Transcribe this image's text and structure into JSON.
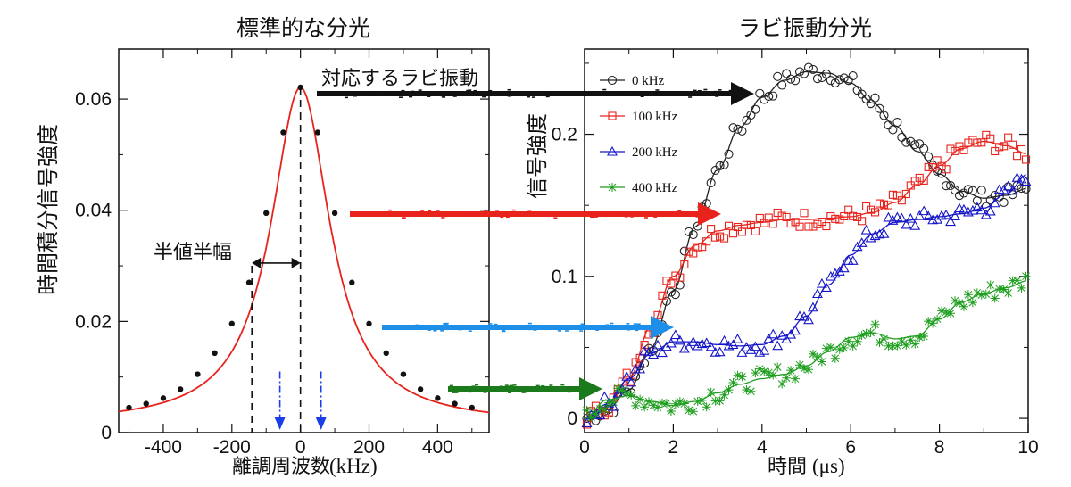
{
  "chart_data": [
    {
      "type": "scatter",
      "title": "標準的な分光",
      "xlabel": "離調周波数",
      "xlabel_unit": "(kHz)",
      "ylabel": "時間積分信号強度",
      "xlim": [
        -530,
        550
      ],
      "ylim": [
        0,
        0.069
      ],
      "x_ticks": [
        "-400",
        "-200",
        "0",
        "200",
        "400"
      ],
      "x_tick_values": [
        -400,
        -200,
        0,
        200,
        400
      ],
      "y_ticks": [
        "0",
        "0.02",
        "0.04",
        "0.06"
      ],
      "y_tick_values": [
        0,
        0.02,
        0.04,
        0.06
      ],
      "series": [
        {
          "x": [
            -500,
            -450,
            -400,
            -350,
            -300,
            -250,
            -200,
            -150,
            -100,
            -50,
            0,
            50,
            100,
            150,
            200,
            250,
            300,
            350,
            400,
            450,
            500
          ],
          "y": [
            0.0045,
            0.0052,
            0.0062,
            0.0078,
            0.0105,
            0.0143,
            0.0196,
            0.027,
            0.0395,
            0.054,
            0.0621,
            0.054,
            0.0395,
            0.027,
            0.0196,
            0.0143,
            0.0105,
            0.0078,
            0.0062,
            0.0052,
            0.0045
          ]
        }
      ],
      "fit_color": "#e8231c",
      "hwhm_label": "半値半幅",
      "hwhm_kHz": 105,
      "blue_arrows_x": [
        -60,
        60
      ],
      "annotation": "対応するラビ振動"
    },
    {
      "type": "scatter",
      "title": "ラビ振動分光",
      "xlabel": "時間",
      "xlabel_unit": "(μs)",
      "ylabel": "信号強度",
      "xlim": [
        0,
        10
      ],
      "ylim": [
        -0.01,
        0.26
      ],
      "x_ticks": [
        "0",
        "2",
        "4",
        "6",
        "8",
        "10"
      ],
      "x_tick_values": [
        0,
        2,
        4,
        6,
        8,
        10
      ],
      "y_ticks": [
        "0",
        "0.1",
        "0.2"
      ],
      "y_tick_values": [
        0,
        0.1,
        0.2
      ],
      "legend_position": "top-left",
      "series": [
        {
          "name": "0 kHz",
          "color": "#222222",
          "marker": "circle",
          "x": [
            0,
            0.5,
            1,
            1.5,
            2,
            2.5,
            3,
            3.5,
            4,
            4.5,
            5,
            5.5,
            6,
            6.5,
            7,
            7.5,
            8,
            8.5,
            9,
            9.5,
            10
          ],
          "y": [
            0,
            0.006,
            0.02,
            0.05,
            0.09,
            0.135,
            0.175,
            0.205,
            0.226,
            0.238,
            0.244,
            0.243,
            0.236,
            0.222,
            0.206,
            0.188,
            0.172,
            0.16,
            0.155,
            0.157,
            0.162
          ]
        },
        {
          "name": "100 kHz",
          "color": "#e8231c",
          "marker": "square",
          "x": [
            0,
            0.5,
            1,
            1.5,
            2,
            2.5,
            3,
            3.5,
            4,
            4.5,
            5,
            5.5,
            6,
            6.5,
            7,
            7.5,
            8,
            8.5,
            9,
            9.5,
            10
          ],
          "y": [
            0,
            0.008,
            0.028,
            0.065,
            0.1,
            0.122,
            0.132,
            0.136,
            0.138,
            0.14,
            0.14,
            0.141,
            0.142,
            0.145,
            0.152,
            0.164,
            0.178,
            0.19,
            0.195,
            0.192,
            0.186
          ]
        },
        {
          "name": "200 kHz",
          "color": "#1515c8",
          "marker": "triangle",
          "x": [
            0,
            0.5,
            1,
            1.5,
            2,
            2.5,
            3,
            3.5,
            4,
            4.5,
            5,
            5.5,
            6,
            6.5,
            7,
            7.5,
            8,
            8.5,
            9,
            9.5,
            10
          ],
          "y": [
            0,
            0.01,
            0.028,
            0.046,
            0.054,
            0.054,
            0.052,
            0.051,
            0.052,
            0.058,
            0.072,
            0.094,
            0.115,
            0.13,
            0.138,
            0.14,
            0.142,
            0.144,
            0.148,
            0.158,
            0.172
          ]
        },
        {
          "name": "400 kHz",
          "color": "#1e9e1e",
          "marker": "star",
          "x": [
            0,
            0.5,
            1,
            1.5,
            2,
            2.5,
            3,
            3.5,
            4,
            4.5,
            5,
            5.5,
            6,
            6.5,
            7,
            7.5,
            8,
            8.5,
            9,
            9.5,
            10
          ],
          "y": [
            0,
            0.013,
            0.016,
            0.012,
            0.009,
            0.012,
            0.018,
            0.024,
            0.028,
            0.031,
            0.037,
            0.047,
            0.057,
            0.06,
            0.056,
            0.058,
            0.07,
            0.082,
            0.088,
            0.092,
            0.097
          ]
        }
      ],
      "arrow_colors": [
        "#111111",
        "#e8231c",
        "#1e8fe8",
        "#1b7a1b"
      ]
    }
  ]
}
